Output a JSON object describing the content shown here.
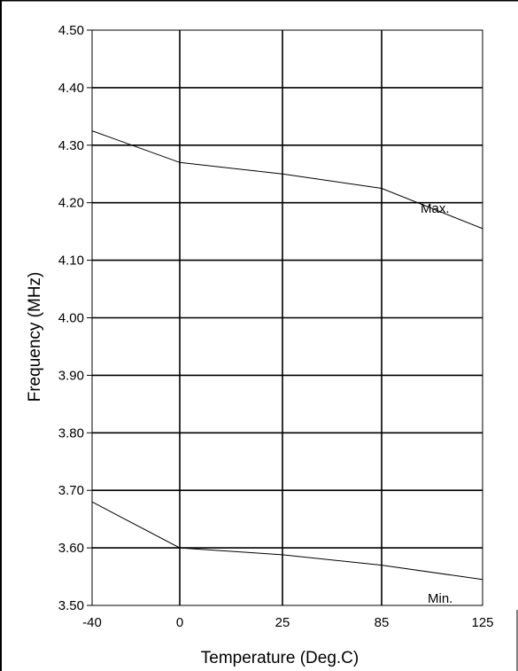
{
  "chart_data": {
    "type": "line",
    "xlabel": "Temperature (Deg.C)",
    "ylabel": "Frequency (MHz)",
    "x_categories": [
      "-40",
      "0",
      "25",
      "85",
      "125"
    ],
    "y_ticks": [
      "4.50",
      "4.40",
      "4.30",
      "4.20",
      "4.10",
      "4.00",
      "3.90",
      "3.80",
      "3.70",
      "3.60",
      "3.50"
    ],
    "ylim": [
      3.5,
      4.5
    ],
    "grid": true,
    "series": [
      {
        "name": "Max.",
        "values": [
          4.325,
          4.27,
          4.25,
          4.225,
          4.155
        ]
      },
      {
        "name": "Min.",
        "values": [
          3.68,
          3.6,
          3.588,
          3.57,
          3.545
        ]
      }
    ]
  }
}
